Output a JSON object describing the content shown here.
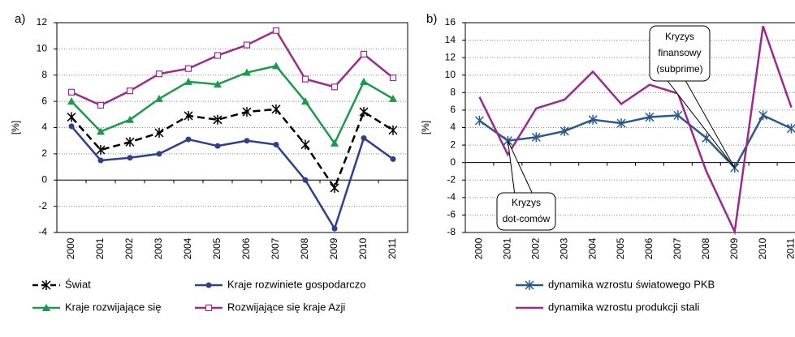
{
  "chart_data": [
    {
      "type": "line",
      "panel": "a)",
      "ylabel": "[%]",
      "categories": [
        "2000",
        "2001",
        "2002",
        "2003",
        "2004",
        "2005",
        "2006",
        "2007",
        "2008",
        "2009",
        "2010",
        "2011"
      ],
      "ylim": [
        -4,
        12
      ],
      "yticks": [
        -4,
        -2,
        0,
        2,
        4,
        6,
        8,
        10,
        12
      ],
      "grid": true,
      "series": [
        {
          "name": "Świat",
          "color": "#000000",
          "marker": "star",
          "dash": true,
          "values": [
            4.8,
            2.3,
            2.9,
            3.6,
            4.9,
            4.6,
            5.2,
            5.4,
            2.7,
            -0.6,
            5.2,
            3.8
          ]
        },
        {
          "name": "Kraje rozwiniete gospodarczo",
          "color": "#2e3f8f",
          "marker": "circle",
          "dash": false,
          "values": [
            4.1,
            1.5,
            1.7,
            2.0,
            3.1,
            2.6,
            3.0,
            2.7,
            0.0,
            -3.7,
            3.2,
            1.6
          ]
        },
        {
          "name": "Kraje rozwijające się",
          "color": "#1a9a4a",
          "marker": "triangle",
          "dash": false,
          "values": [
            6.0,
            3.7,
            4.6,
            6.2,
            7.5,
            7.3,
            8.2,
            8.7,
            6.0,
            2.8,
            7.5,
            6.2
          ]
        },
        {
          "name": "Rozwijające się kraje Azji",
          "color": "#9b2a8f",
          "marker": "square",
          "dash": false,
          "values": [
            6.7,
            5.7,
            6.8,
            8.1,
            8.5,
            9.5,
            10.3,
            11.4,
            7.7,
            7.1,
            9.6,
            7.8
          ]
        }
      ]
    },
    {
      "type": "line",
      "panel": "b)",
      "ylabel": "[%]",
      "categories": [
        "2000",
        "2001",
        "2002",
        "2003",
        "2004",
        "2005",
        "2006",
        "2007",
        "2008",
        "2009",
        "2010",
        "2011"
      ],
      "ylim": [
        -8,
        16
      ],
      "yticks": [
        -8,
        -6,
        -4,
        -2,
        0,
        2,
        4,
        6,
        8,
        10,
        12,
        14,
        16
      ],
      "grid": true,
      "series": [
        {
          "name": "dynamika wzrostu światowego PKB",
          "color": "#2b5a8a",
          "marker": "star",
          "dash": false,
          "values": [
            4.8,
            2.5,
            2.9,
            3.6,
            4.9,
            4.5,
            5.2,
            5.4,
            2.8,
            -0.6,
            5.4,
            3.9
          ]
        },
        {
          "name": "dynamika wzrostu produkcji stali",
          "color": "#9b2a8f",
          "marker": "none",
          "dash": false,
          "values": [
            7.5,
            0.9,
            6.2,
            7.2,
            10.4,
            6.7,
            8.9,
            7.9,
            -1.0,
            -7.9,
            15.6,
            6.3
          ]
        }
      ],
      "annotations": [
        {
          "lines": [
            "Kryzys",
            "dot-comów"
          ]
        },
        {
          "lines": [
            "Kryzys",
            "finansowy",
            "(subprime)"
          ]
        }
      ]
    }
  ]
}
